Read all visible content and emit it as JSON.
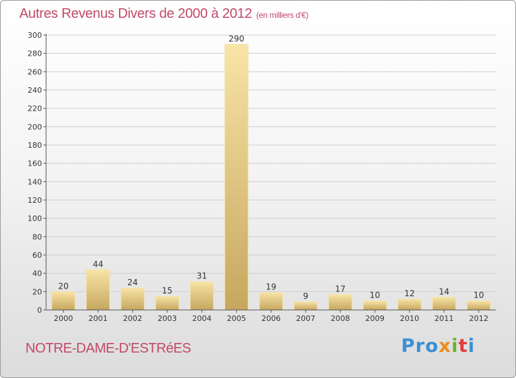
{
  "title": "Autres Revenus Divers de 2000 à 2012",
  "subtitle": "(en milliers d'€)",
  "commune": "NOTRE-DAME-D'ESTRéES",
  "logo": {
    "p1": "Pro",
    "p2": "x",
    "p3": "i",
    "p4": "t",
    "p5": "i"
  },
  "colors": {
    "title": "#c04a6a",
    "bar_light": "#f6de9a",
    "bar_dark": "#c8aa60",
    "grid": "#cfcfcf"
  },
  "chart_data": {
    "type": "bar",
    "title": "Autres Revenus Divers de 2000 à 2012",
    "subtitle": "(en milliers d'€)",
    "categories": [
      "2000",
      "2001",
      "2002",
      "2003",
      "2004",
      "2005",
      "2006",
      "2007",
      "2008",
      "2009",
      "2010",
      "2011",
      "2012"
    ],
    "values": [
      20,
      44,
      24,
      15,
      31,
      290,
      19,
      9,
      17,
      10,
      12,
      14,
      10
    ],
    "ylim": [
      0,
      300
    ],
    "yticks": [
      0,
      20,
      40,
      60,
      80,
      100,
      120,
      140,
      160,
      180,
      200,
      220,
      240,
      260,
      280,
      300
    ],
    "grid": true,
    "legend": false
  }
}
